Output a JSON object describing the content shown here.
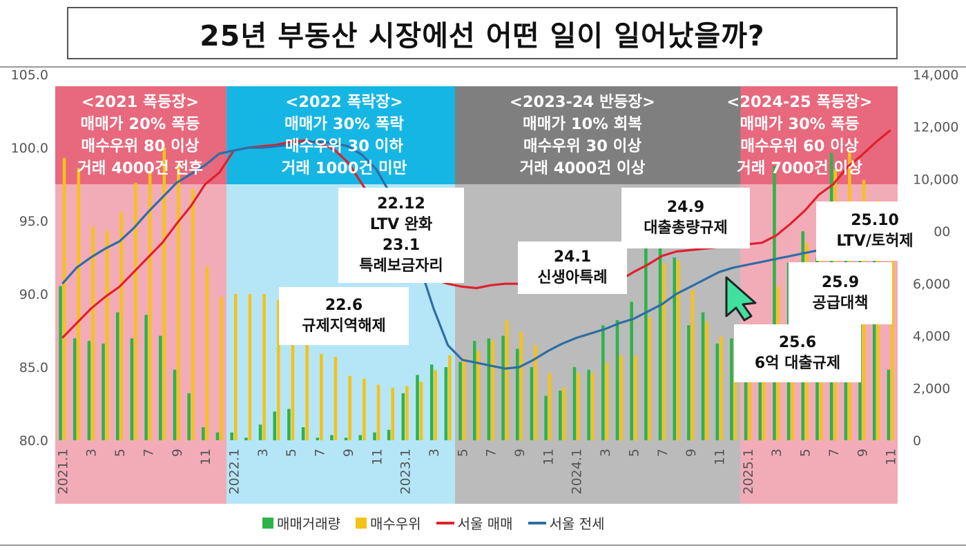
{
  "title": "25년 부동산 시장에선 어떤 일이 일어났을까?",
  "periods": [
    {
      "name": "2021 폭등장",
      "lines": [
        "<2021 폭등장>",
        "매매가 20% 폭등",
        "매수우위 80 이상",
        "거래 4000건 전후"
      ],
      "color": "#E8687D",
      "bg": "rgba(232,104,125,0.55)"
    },
    {
      "name": "2022 폭락장",
      "lines": [
        "<2022 폭락장>",
        "매매가 30% 폭락",
        "매수우위 30 이하",
        "거래 1000건 미만"
      ],
      "color": "#16B6E4",
      "bg": "rgba(120,210,240,0.55)"
    },
    {
      "name": "2023-24 반등장",
      "lines": [
        "<2023-24 반등장>",
        "매매가 10% 회복",
        "매수우위 30 이상",
        "거래 4000건 이상"
      ],
      "color": "#7F7F7F",
      "bg": "rgba(150,150,150,0.65)"
    },
    {
      "name": "2024-25 폭등장",
      "lines": [
        "<2024-25 폭등장>",
        "매매가 30% 폭등",
        "매수우위 60 이상",
        "거래 7000건 이상"
      ],
      "color": "#E8687D",
      "bg": "rgba(232,104,125,0.55)"
    }
  ],
  "callouts": [
    {
      "id": "2212",
      "lines": [
        "22.12",
        "LTV 완화",
        "23.1",
        "특례보금자리"
      ]
    },
    {
      "id": "226",
      "lines": [
        "22.6",
        "규제지역해제"
      ]
    },
    {
      "id": "241",
      "lines": [
        "24.1",
        "신생아특례"
      ]
    },
    {
      "id": "249",
      "lines": [
        "24.9",
        "대출총량규제"
      ]
    },
    {
      "id": "2510",
      "lines": [
        "25.10",
        "LTV/토허제"
      ]
    },
    {
      "id": "259",
      "lines": [
        "25.9",
        "공급대책"
      ]
    },
    {
      "id": "256",
      "lines": [
        "25.6",
        "6억 대출규제"
      ]
    }
  ],
  "legend": [
    {
      "label": "매매거래량",
      "type": "bar",
      "color": "#2DB34A"
    },
    {
      "label": "매수우위",
      "type": "bar",
      "color": "#F5C218"
    },
    {
      "label": "서울 매매",
      "type": "line",
      "color": "#E0202C"
    },
    {
      "label": "서울 전세",
      "type": "line",
      "color": "#2E6DA4"
    }
  ],
  "chart_data": {
    "type": "bar",
    "title": "25년 부동산 시장에선 어떤 일이 일어났을까?",
    "x": [
      "2021.1",
      "2",
      "3",
      "4",
      "5",
      "6",
      "7",
      "8",
      "9",
      "10",
      "11",
      "12",
      "2022.1",
      "2",
      "3",
      "4",
      "5",
      "6",
      "7",
      "8",
      "9",
      "10",
      "11",
      "12",
      "2023.1",
      "2",
      "3",
      "4",
      "5",
      "6",
      "7",
      "8",
      "9",
      "10",
      "11",
      "12",
      "2024.1",
      "2",
      "3",
      "4",
      "5",
      "6",
      "7",
      "8",
      "9",
      "10",
      "11",
      "12",
      "2025.1",
      "2",
      "3",
      "4",
      "5",
      "6",
      "7",
      "8",
      "9",
      "10",
      "11"
    ],
    "x_tick_labels": [
      "2021.1",
      "",
      "3",
      "",
      "5",
      "",
      "7",
      "",
      "9",
      "",
      "11",
      "",
      "2022.1",
      "",
      "3",
      "",
      "5",
      "",
      "7",
      "",
      "9",
      "",
      "11",
      "",
      "2023.1",
      "",
      "3",
      "",
      "5",
      "",
      "7",
      "",
      "9",
      "",
      "11",
      "",
      "2024.1",
      "",
      "3",
      "",
      "5",
      "",
      "7",
      "",
      "9",
      "",
      "11",
      "",
      "2025.1",
      "",
      "3",
      "",
      "5",
      "",
      "7",
      "",
      "9",
      "",
      "11"
    ],
    "left_axis": {
      "ylim": [
        80,
        105
      ],
      "ticks": [
        "80.0",
        "85.0",
        "90.0",
        "95.0",
        "100.0",
        "105.0"
      ]
    },
    "right_axis": {
      "ylim": [
        0,
        14000
      ],
      "ticks": [
        "0",
        "2,000",
        "4,000",
        "6,000",
        "8,000",
        "10,000",
        "12,000",
        "14,000"
      ]
    },
    "series": [
      {
        "name": "매매거래량",
        "kind": "bar",
        "axis": "right",
        "color": "#2DB34A",
        "values": [
          5900,
          3900,
          3800,
          3700,
          4900,
          3900,
          4800,
          4000,
          2700,
          1800,
          500,
          300,
          300,
          100,
          600,
          1100,
          1200,
          500,
          100,
          200,
          100,
          200,
          300,
          400,
          1800,
          2500,
          2900,
          2800,
          3000,
          3800,
          3900,
          4000,
          3500,
          2800,
          1700,
          1900,
          2800,
          2700,
          4400,
          4600,
          5300,
          8300,
          8600,
          7000,
          4400,
          4900,
          3700,
          3900,
          3200,
          4300,
          10500,
          6800,
          8000,
          7000,
          11000,
          8500,
          8500,
          8500,
          2700
        ]
      },
      {
        "name": "매수우위",
        "kind": "bar",
        "axis": "left",
        "color": "#F5C218",
        "values": [
          99.3,
          98.6,
          94.6,
          94.3,
          95.6,
          97.6,
          98.4,
          100.0,
          98.9,
          97.2,
          91.9,
          89.8,
          90.0,
          90.0,
          90.0,
          89.6,
          88.6,
          87.7,
          85.9,
          85.7,
          84.4,
          84.2,
          83.8,
          83.6,
          83.7,
          84.0,
          84.8,
          85.8,
          85.6,
          86.1,
          86.8,
          88.2,
          87.4,
          86.5,
          84.6,
          83.6,
          84.6,
          84.6,
          85.3,
          85.8,
          85.8,
          88.4,
          92.1,
          92.3,
          90.3,
          88.1,
          87.1,
          86.5,
          85.8,
          87.9,
          90.5,
          91.9,
          93.5,
          95.6,
          98.5,
          99.7,
          97.8,
          96.4,
          95.2
        ]
      },
      {
        "name": "서울 매매",
        "kind": "line",
        "axis": "left",
        "color": "#E0202C",
        "values": [
          87.0,
          88.0,
          89.0,
          89.8,
          90.5,
          91.5,
          92.5,
          93.5,
          94.8,
          96.0,
          97.5,
          98.3,
          99.8,
          100.0,
          100.1,
          100.2,
          100.4,
          100.5,
          100.3,
          99.9,
          99.0,
          97.5,
          96.0,
          94.5,
          92.9,
          91.9,
          91.0,
          90.7,
          90.5,
          90.4,
          90.6,
          90.7,
          90.7,
          90.6,
          90.4,
          90.2,
          90.1,
          90.2,
          90.5,
          90.9,
          91.5,
          92.0,
          92.6,
          92.9,
          93.0,
          93.1,
          93.2,
          93.3,
          93.4,
          93.5,
          94.0,
          94.8,
          95.7,
          96.8,
          97.5,
          98.7,
          99.5,
          100.4,
          101.2
        ]
      },
      {
        "name": "서울 전세",
        "kind": "line",
        "axis": "left",
        "color": "#2E6DA4",
        "values": [
          90.7,
          91.8,
          92.5,
          93.1,
          93.6,
          94.5,
          95.6,
          96.6,
          97.6,
          98.2,
          98.8,
          99.6,
          99.8,
          100.0,
          100.0,
          100.1,
          100.2,
          100.4,
          100.4,
          100.3,
          100.1,
          99.5,
          98.5,
          96.8,
          94.5,
          92.0,
          89.0,
          86.5,
          85.5,
          85.3,
          85.1,
          84.9,
          85.0,
          85.5,
          86.1,
          86.6,
          87.0,
          87.3,
          87.6,
          88.0,
          88.3,
          88.8,
          89.3,
          90.0,
          90.5,
          91.0,
          91.5,
          91.8,
          92.0,
          92.2,
          92.4,
          92.6,
          92.8,
          93.0,
          93.3,
          93.6,
          93.9,
          94.2,
          94.5
        ]
      }
    ]
  }
}
